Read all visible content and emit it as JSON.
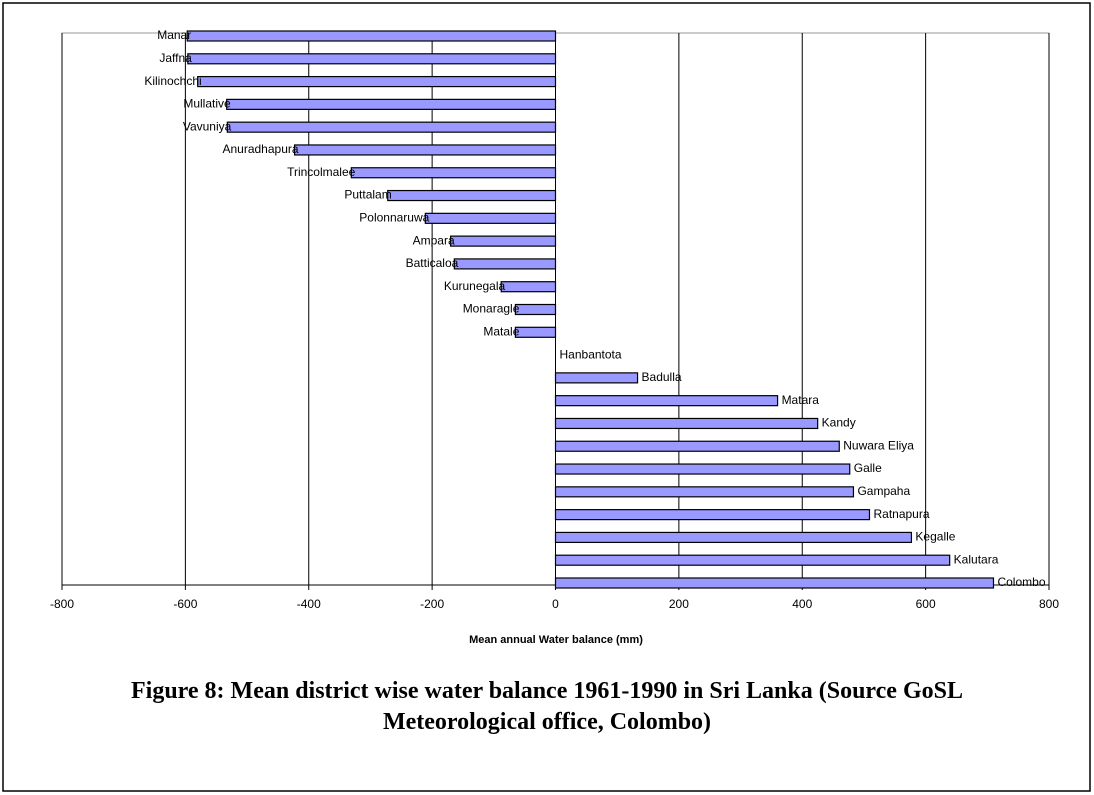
{
  "chart_data": {
    "type": "bar",
    "orientation": "horizontal",
    "categories": [
      "Manar",
      "Jaffna",
      "Kilinochchi",
      "Mullative",
      "Vavuniya",
      "Anuradhapura",
      "Trincolmalee",
      "Puttalam",
      "Polonnaruwa",
      "Ampara",
      "Batticaloa",
      "Kurunegala",
      "Monaragle",
      "Matale",
      "Hanbantota",
      "Badulla",
      "Matara",
      "Kandy",
      "Nuwara Eliya",
      "Galle",
      "Gampaha",
      "Ratnapura",
      "Kegalle",
      "Kalutara",
      "Colombo"
    ],
    "values": [
      -597,
      -596,
      -580,
      -533,
      -532,
      -423,
      -331,
      -272,
      -211,
      -170,
      -164,
      -88,
      -65,
      -65,
      0,
      133,
      360,
      425,
      460,
      477,
      483,
      509,
      577,
      639,
      710
    ],
    "color": "#9999ff",
    "xlim": [
      -800,
      800
    ],
    "xticks": [
      -800,
      -600,
      -400,
      -200,
      0,
      200,
      400,
      600,
      800
    ],
    "grid": true,
    "xlabel": "Mean annual  Water balance (mm)",
    "caption": "Figure 8: Mean district wise water balance 1961-1990 in Sri Lanka (Source GoSL Meteorological  office, Colombo)"
  }
}
